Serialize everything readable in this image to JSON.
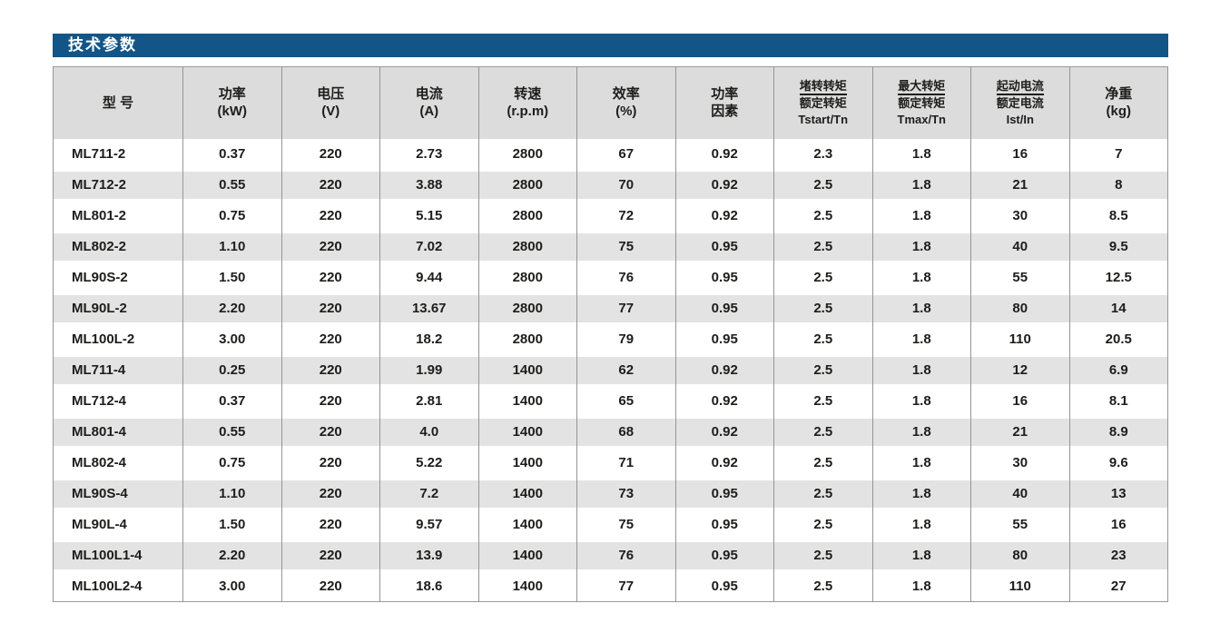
{
  "section": {
    "title": "技术参数"
  },
  "colors": {
    "title_bar": "#145587",
    "title_text": "#ffffff",
    "header_bg": "#dcdcdc",
    "zebra_bg": "#e3e3e3",
    "border": "#959595",
    "text": "#1d1d1b"
  },
  "table": {
    "columns": [
      {
        "id": "model",
        "lines": [
          "型 号"
        ],
        "fraction": false
      },
      {
        "id": "power",
        "lines": [
          "功率",
          "(kW)"
        ],
        "fraction": false
      },
      {
        "id": "voltage",
        "lines": [
          "电压",
          "(V)"
        ],
        "fraction": false
      },
      {
        "id": "current",
        "lines": [
          "电流",
          "(A)"
        ],
        "fraction": false
      },
      {
        "id": "speed",
        "lines": [
          "转速",
          "(r.p.m)"
        ],
        "fraction": false
      },
      {
        "id": "efficiency",
        "lines": [
          "效率",
          "(%)"
        ],
        "fraction": false
      },
      {
        "id": "power-factor",
        "lines": [
          "功率",
          "因素"
        ],
        "fraction": false
      },
      {
        "id": "tstart-tn",
        "lines": [
          "堵转转矩",
          "额定转矩",
          "Tstart/Tn"
        ],
        "fraction": true
      },
      {
        "id": "tmax-tn",
        "lines": [
          "最大转矩",
          "额定转矩",
          "Tmax/Tn"
        ],
        "fraction": true
      },
      {
        "id": "ist-in",
        "lines": [
          "起动电流",
          "额定电流",
          "Ist/In"
        ],
        "fraction": true
      },
      {
        "id": "weight",
        "lines": [
          "净重",
          "(kg)"
        ],
        "fraction": false
      }
    ],
    "rows": [
      [
        "ML711-2",
        "0.37",
        "220",
        "2.73",
        "2800",
        "67",
        "0.92",
        "2.3",
        "1.8",
        "16",
        "7"
      ],
      [
        "ML712-2",
        "0.55",
        "220",
        "3.88",
        "2800",
        "70",
        "0.92",
        "2.5",
        "1.8",
        "21",
        "8"
      ],
      [
        "ML801-2",
        "0.75",
        "220",
        "5.15",
        "2800",
        "72",
        "0.92",
        "2.5",
        "1.8",
        "30",
        "8.5"
      ],
      [
        "ML802-2",
        "1.10",
        "220",
        "7.02",
        "2800",
        "75",
        "0.95",
        "2.5",
        "1.8",
        "40",
        "9.5"
      ],
      [
        "ML90S-2",
        "1.50",
        "220",
        "9.44",
        "2800",
        "76",
        "0.95",
        "2.5",
        "1.8",
        "55",
        "12.5"
      ],
      [
        "ML90L-2",
        "2.20",
        "220",
        "13.67",
        "2800",
        "77",
        "0.95",
        "2.5",
        "1.8",
        "80",
        "14"
      ],
      [
        "ML100L-2",
        "3.00",
        "220",
        "18.2",
        "2800",
        "79",
        "0.95",
        "2.5",
        "1.8",
        "110",
        "20.5"
      ],
      [
        "ML711-4",
        "0.25",
        "220",
        "1.99",
        "1400",
        "62",
        "0.92",
        "2.5",
        "1.8",
        "12",
        "6.9"
      ],
      [
        "ML712-4",
        "0.37",
        "220",
        "2.81",
        "1400",
        "65",
        "0.92",
        "2.5",
        "1.8",
        "16",
        "8.1"
      ],
      [
        "ML801-4",
        "0.55",
        "220",
        "4.0",
        "1400",
        "68",
        "0.92",
        "2.5",
        "1.8",
        "21",
        "8.9"
      ],
      [
        "ML802-4",
        "0.75",
        "220",
        "5.22",
        "1400",
        "71",
        "0.92",
        "2.5",
        "1.8",
        "30",
        "9.6"
      ],
      [
        "ML90S-4",
        "1.10",
        "220",
        "7.2",
        "1400",
        "73",
        "0.95",
        "2.5",
        "1.8",
        "40",
        "13"
      ],
      [
        "ML90L-4",
        "1.50",
        "220",
        "9.57",
        "1400",
        "75",
        "0.95",
        "2.5",
        "1.8",
        "55",
        "16"
      ],
      [
        "ML100L1-4",
        "2.20",
        "220",
        "13.9",
        "1400",
        "76",
        "0.95",
        "2.5",
        "1.8",
        "80",
        "23"
      ],
      [
        "ML100L2-4",
        "3.00",
        "220",
        "18.6",
        "1400",
        "77",
        "0.95",
        "2.5",
        "1.8",
        "110",
        "27"
      ]
    ]
  }
}
